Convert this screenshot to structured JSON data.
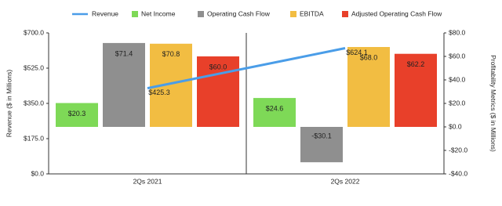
{
  "chart_data": {
    "type": "bar",
    "categories": [
      "2Qs 2021",
      "2Qs 2022"
    ],
    "y_label": "Revenue ($ in Millions)",
    "y2_label": "Profitability Metrics ($ in Millions)",
    "ylim": [
      0,
      700
    ],
    "yticks": [
      {
        "value": 0,
        "label": "$0.0"
      },
      {
        "value": 175,
        "label": "$175.0"
      },
      {
        "value": 350,
        "label": "$350.0"
      },
      {
        "value": 525,
        "label": "$525.0"
      },
      {
        "value": 700,
        "label": "$700.0"
      }
    ],
    "y2lim": [
      -40,
      80
    ],
    "y2ticks": [
      {
        "value": -40,
        "label": "-$40.0"
      },
      {
        "value": -20,
        "label": "-$20.0"
      },
      {
        "value": 0,
        "label": "$0.0"
      },
      {
        "value": 20,
        "label": "$20.0"
      },
      {
        "value": 40,
        "label": "$40.0"
      },
      {
        "value": 60,
        "label": "$60.0"
      },
      {
        "value": 80,
        "label": "$80.0"
      }
    ],
    "legend": "top",
    "series": [
      {
        "name": "Revenue",
        "type": "line",
        "color": "#4a9de8",
        "values": [
          425.3,
          624.1
        ],
        "value_labels": [
          "$425.3",
          "$624.1"
        ]
      },
      {
        "name": "Net Income",
        "axis": "y2",
        "color": "#7ed957",
        "values": [
          20.3,
          24.6
        ],
        "value_labels": [
          "$20.3",
          "$24.6"
        ]
      },
      {
        "name": "Operating Cash Flow",
        "axis": "y2",
        "color": "#8f8f8f",
        "values": [
          71.4,
          -30.1
        ],
        "value_labels": [
          "$71.4",
          "-$30.1"
        ]
      },
      {
        "name": "EBITDA",
        "axis": "y2",
        "color": "#f2bd42",
        "values": [
          70.8,
          68.0
        ],
        "value_labels": [
          "$70.8",
          "$68.0"
        ]
      },
      {
        "name": "Adjusted Operating Cash Flow",
        "axis": "y2",
        "color": "#e8402a",
        "values": [
          60.0,
          62.2
        ],
        "value_labels": [
          "$60.0",
          "$62.2"
        ]
      }
    ]
  }
}
